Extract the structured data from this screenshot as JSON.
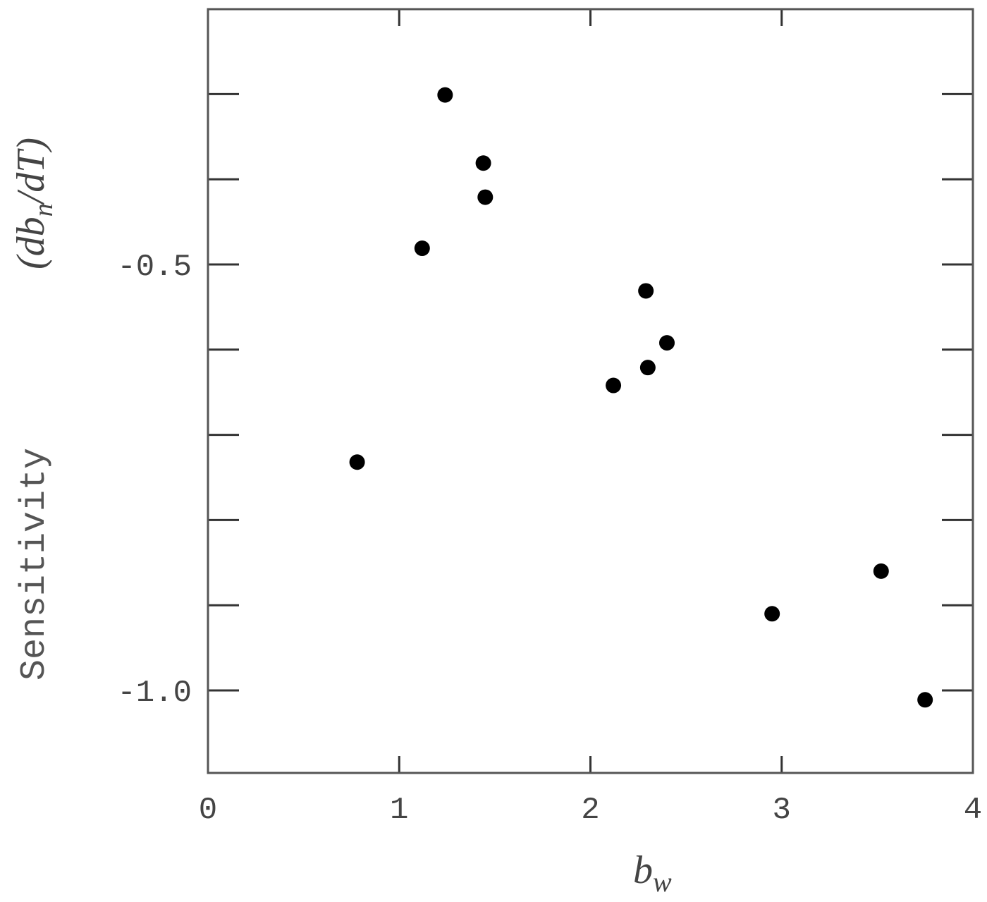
{
  "chart_data": {
    "type": "scatter",
    "xlabel": "b",
    "xlabel_sub": "w",
    "ylabel": "Sensitivity",
    "ylabel_extra_prefix": "(db",
    "ylabel_extra_sub": "n",
    "ylabel_extra_suffix": "/dT)",
    "xlim": [
      0,
      4
    ],
    "ylim": [
      -1.1,
      -0.2
    ],
    "x_ticks": [
      0,
      1,
      2,
      3,
      4
    ],
    "x_tick_labels": [
      "0",
      "1",
      "2",
      "3",
      "4"
    ],
    "y_ticks": [
      -1.0,
      -0.9,
      -0.8,
      -0.7,
      -0.6,
      -0.5,
      -0.4,
      -0.3
    ],
    "y_tick_labels": [
      "-1.0",
      "",
      "",
      "",
      "",
      "-0.5",
      "",
      ""
    ],
    "grid": false,
    "points": [
      {
        "x": 0.78,
        "y": -0.732
      },
      {
        "x": 1.12,
        "y": -0.481
      },
      {
        "x": 1.24,
        "y": -0.301
      },
      {
        "x": 1.44,
        "y": -0.381
      },
      {
        "x": 1.45,
        "y": -0.421
      },
      {
        "x": 2.12,
        "y": -0.642
      },
      {
        "x": 2.29,
        "y": -0.531
      },
      {
        "x": 2.3,
        "y": -0.621
      },
      {
        "x": 2.4,
        "y": -0.592
      },
      {
        "x": 2.95,
        "y": -0.91
      },
      {
        "x": 3.52,
        "y": -0.86
      },
      {
        "x": 3.75,
        "y": -1.011
      }
    ]
  }
}
